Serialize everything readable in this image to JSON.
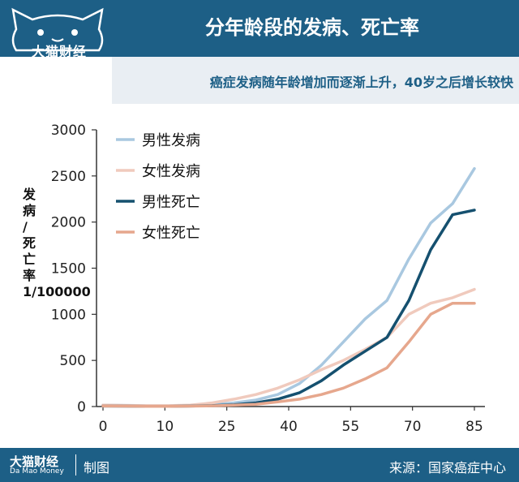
{
  "header": {
    "title": "分年龄段的发病、死亡率",
    "brand": "大猫财经",
    "brand_en": "Da Mao Money"
  },
  "subtitle": "癌症发病随年龄增加而逐渐上升，40岁之后增长较快",
  "footer": {
    "brand": "大猫财经",
    "brand_en": "Da Mao Money",
    "made": "制图",
    "source": "来源：国家癌症中心"
  },
  "chart_data": {
    "type": "line",
    "ylabel": "发病 / 死亡率   1/100000",
    "ylabel_lines": [
      "发病",
      "/",
      "死亡率",
      "1/100000"
    ],
    "ylim": [
      0,
      3000
    ],
    "yticks": [
      "0",
      "500",
      "1000",
      "1500",
      "2000",
      "2500",
      "3000"
    ],
    "xticks": [
      "0",
      "10",
      "25",
      "40",
      "55",
      "70",
      "85"
    ],
    "x": [
      0,
      5,
      10,
      15,
      20,
      25,
      30,
      35,
      40,
      45,
      50,
      55,
      60,
      65,
      70,
      75,
      80,
      85
    ],
    "grid": false,
    "legend_position": "top-left",
    "series": [
      {
        "name": "男性发病",
        "color": "#a9c8e0",
        "values": [
          15,
          12,
          10,
          10,
          12,
          20,
          40,
          70,
          130,
          250,
          450,
          700,
          950,
          1150,
          1600,
          1990,
          2200,
          2580
        ]
      },
      {
        "name": "女性发病",
        "color": "#f0cabd",
        "values": [
          15,
          12,
          10,
          10,
          15,
          40,
          80,
          130,
          200,
          290,
          400,
          500,
          620,
          750,
          1000,
          1120,
          1180,
          1270
        ]
      },
      {
        "name": "男性死亡",
        "color": "#15506f",
        "values": [
          5,
          4,
          3,
          3,
          5,
          10,
          20,
          40,
          80,
          150,
          280,
          450,
          600,
          750,
          1150,
          1700,
          2080,
          2130
        ]
      },
      {
        "name": "女性死亡",
        "color": "#e6a78d",
        "values": [
          5,
          4,
          3,
          3,
          4,
          8,
          15,
          25,
          50,
          80,
          130,
          200,
          300,
          420,
          700,
          1000,
          1120,
          1120
        ]
      }
    ]
  }
}
